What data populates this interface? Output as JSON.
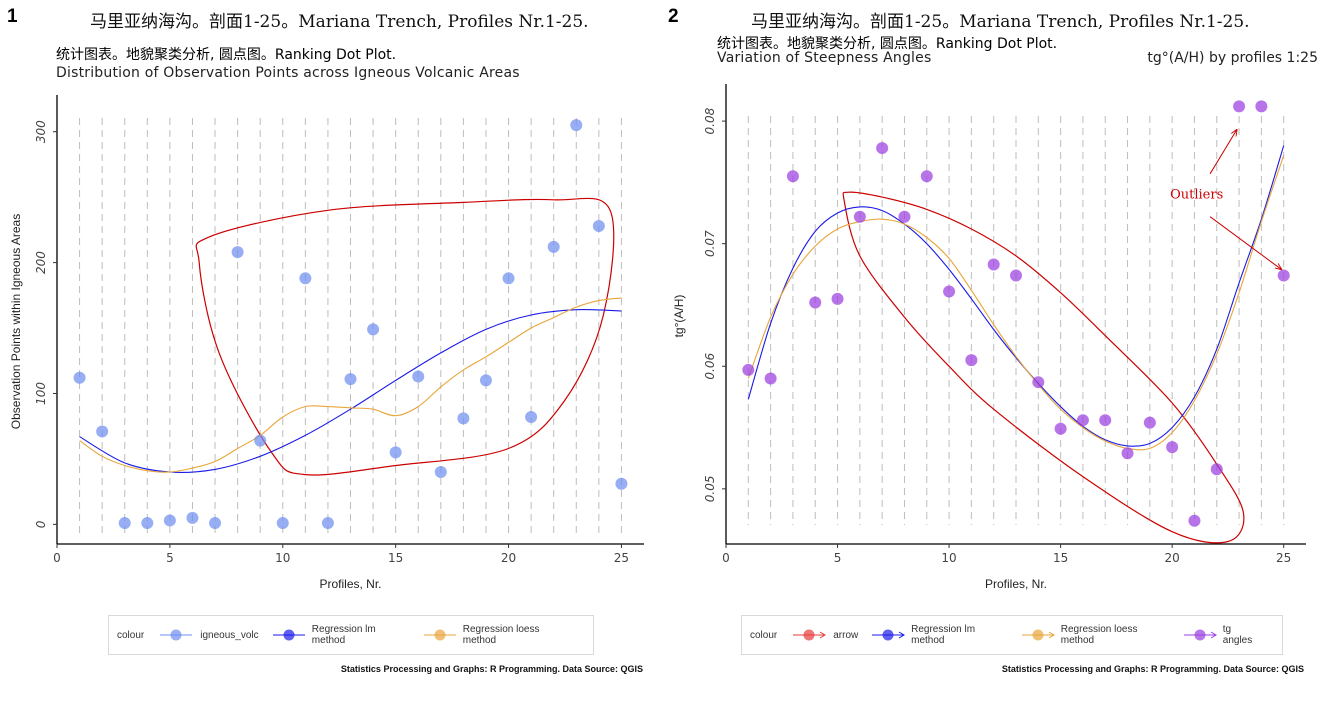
{
  "chart_data": [
    {
      "type": "scatter",
      "panel_label": "1",
      "title": "马里亚纳海沟。剖面1-25。Mariana Trench, Profiles Nr.1-25.",
      "subtitle": "统计图表。地貌聚类分析, 圆点图。Ranking Dot Plot.",
      "subtitle2": "Distribution of Observation Points across Igneous Volcanic Areas",
      "xlabel": "Profiles, Nr.",
      "ylabel": "Observation Points within Igneous Areas",
      "xlim": [
        0,
        26
      ],
      "ylim": [
        -15,
        325
      ],
      "xticks": [
        "0",
        "5",
        "10",
        "15",
        "20",
        "25"
      ],
      "xtick_values": [
        0,
        5,
        10,
        15,
        20,
        25
      ],
      "yticks": [
        "0",
        "100",
        "200",
        "300"
      ],
      "ytick_values": [
        0,
        100,
        200,
        300
      ],
      "grid": "dashed vertical lines at each profile",
      "series": [
        {
          "name": "igneous_volc",
          "kind": "points",
          "color": "#6f8ff0",
          "x": [
            1,
            2,
            3,
            4,
            5,
            6,
            7,
            8,
            9,
            10,
            11,
            12,
            13,
            14,
            15,
            16,
            17,
            18,
            19,
            20,
            21,
            22,
            23,
            24,
            25
          ],
          "y": [
            112,
            71,
            1,
            1,
            3,
            5,
            1,
            208,
            64,
            1,
            188,
            1,
            111,
            149,
            55,
            113,
            40,
            81,
            110,
            188,
            82,
            212,
            305,
            228,
            31
          ]
        },
        {
          "name": "Regression lm method",
          "kind": "line",
          "color": "#1a1ae8",
          "x": [
            1,
            3,
            5,
            7,
            9,
            11,
            13,
            15,
            17,
            19,
            21,
            23,
            25
          ],
          "y": [
            67,
            47,
            40,
            42,
            52,
            68,
            88,
            110,
            131,
            149,
            160,
            164,
            163
          ]
        },
        {
          "name": "Regression loess method",
          "kind": "line",
          "color": "#e8a53a",
          "x": [
            1,
            2,
            3,
            4,
            5,
            6,
            7,
            8,
            9,
            10,
            11,
            12,
            13,
            14,
            15,
            16,
            17,
            18,
            19,
            20,
            21,
            22,
            23,
            24,
            25
          ],
          "y": [
            64,
            52,
            45,
            41,
            40,
            43,
            48,
            58,
            68,
            82,
            90,
            90,
            89,
            88,
            83,
            90,
            105,
            118,
            128,
            139,
            150,
            158,
            166,
            171,
            173
          ]
        }
      ],
      "annotation_shape": {
        "kind": "closed-curve",
        "color": "#cc0000",
        "x": [
          6.8,
          12,
          18,
          22,
          24.5,
          24.2,
          22.5,
          20,
          15,
          11,
          9.5,
          7.2,
          6.3
        ],
        "y": [
          220,
          240,
          246,
          248,
          240,
          160,
          95,
          58,
          45,
          38,
          55,
          130,
          200
        ]
      },
      "legend": {
        "title": "colour",
        "entries": [
          {
            "label": "igneous_volc",
            "color": "#6f8ff0"
          },
          {
            "label": "Regression lm method",
            "color": "#1a1ae8"
          },
          {
            "label": "Regression loess method",
            "color": "#e8a53a"
          }
        ]
      },
      "caption": "Statistics Processing and Graphs: R Programming. Data Source: QGIS"
    },
    {
      "type": "scatter",
      "panel_label": "2",
      "title": "马里亚纳海沟。剖面1-25。Mariana Trench, Profiles Nr.1-25.",
      "subtitle": "统计图表。地貌聚类分析, 圆点图。Ranking Dot Plot.",
      "subtitle2": "Variation of Steepness Angles",
      "subtitle_right": "tg°(A/H) by profiles 1:25",
      "xlabel": "Profiles, Nr.",
      "ylabel": "tg°(A/H)",
      "xlim": [
        0,
        26
      ],
      "ylim": [
        0.0455,
        0.0827
      ],
      "xticks": [
        "0",
        "5",
        "10",
        "15",
        "20",
        "25"
      ],
      "xtick_values": [
        0,
        5,
        10,
        15,
        20,
        25
      ],
      "yticks": [
        "0.05",
        "0.06",
        "0.07",
        "0.08"
      ],
      "ytick_values": [
        0.05,
        0.06,
        0.07,
        0.08
      ],
      "grid": "dashed vertical lines at each profile",
      "series": [
        {
          "name": "tg angles",
          "kind": "points",
          "color": "#9b3fe0",
          "x": [
            1,
            2,
            3,
            4,
            5,
            6,
            7,
            8,
            9,
            10,
            11,
            12,
            13,
            14,
            15,
            16,
            17,
            18,
            19,
            20,
            21,
            22,
            23,
            24,
            25
          ],
          "y": [
            0.0597,
            0.059,
            0.0755,
            0.0652,
            0.0655,
            0.0722,
            0.0778,
            0.0722,
            0.0755,
            0.0661,
            0.0605,
            0.0683,
            0.0674,
            0.0587,
            0.0549,
            0.0556,
            0.0556,
            0.0529,
            0.0554,
            0.0534,
            0.0474,
            0.0516,
            0.0812,
            0.0812,
            0.0674
          ]
        },
        {
          "name": "Regression lm method",
          "kind": "line",
          "color": "#1a1ae8",
          "x": [
            1,
            2,
            3,
            4,
            5,
            6,
            7,
            8,
            9,
            10,
            11,
            12,
            13,
            14,
            15,
            16,
            17,
            18,
            19,
            20,
            21,
            22,
            23,
            24,
            25
          ],
          "y": [
            0.0573,
            0.0635,
            0.068,
            0.071,
            0.0725,
            0.073,
            0.0727,
            0.0716,
            0.07,
            0.0679,
            0.0655,
            0.063,
            0.0607,
            0.0586,
            0.0567,
            0.0551,
            0.054,
            0.0535,
            0.0537,
            0.055,
            0.0575,
            0.0614,
            0.0668,
            0.072,
            0.078
          ]
        },
        {
          "name": "Regression loess method",
          "kind": "line",
          "color": "#e8a53a",
          "x": [
            1,
            2,
            3,
            4,
            5,
            6,
            7,
            8,
            9,
            10,
            11,
            12,
            13,
            14,
            15,
            16,
            17,
            18,
            19,
            20,
            21,
            22,
            23,
            24,
            25
          ],
          "y": [
            0.059,
            0.064,
            0.0675,
            0.0698,
            0.0712,
            0.0718,
            0.072,
            0.0716,
            0.0705,
            0.0688,
            0.0662,
            0.0634,
            0.0608,
            0.0585,
            0.0565,
            0.055,
            0.0539,
            0.0533,
            0.0533,
            0.0546,
            0.0572,
            0.061,
            0.066,
            0.0718,
            0.0772
          ]
        }
      ],
      "annotation_shape": {
        "kind": "closed-curve",
        "color": "#cc0000",
        "x": [
          5.5,
          7,
          9,
          11,
          13,
          15,
          17,
          20,
          22,
          23.2,
          22.5,
          20,
          16,
          12,
          10,
          8,
          6,
          5.3
        ],
        "y": [
          0.0742,
          0.0738,
          0.0728,
          0.0712,
          0.069,
          0.066,
          0.0625,
          0.057,
          0.052,
          0.048,
          0.0457,
          0.0465,
          0.051,
          0.0565,
          0.06,
          0.064,
          0.069,
          0.0735
        ]
      },
      "annotation": {
        "text": "Outliers",
        "color": "#cc0000",
        "x": 21.1,
        "y": 0.0737,
        "arrows": [
          {
            "from": [
              21.7,
              0.0757
            ],
            "to": [
              22.9,
              0.0793
            ]
          },
          {
            "from": [
              21.7,
              0.0722
            ],
            "to": [
              24.9,
              0.0679
            ]
          }
        ]
      },
      "legend": {
        "title": "colour",
        "entries": [
          {
            "label": "arrow",
            "color": "#e63a3a"
          },
          {
            "label": "Regression lm method",
            "color": "#1a1ae8"
          },
          {
            "label": "Regression loess method",
            "color": "#e8a53a"
          },
          {
            "label": "tg angles",
            "color": "#9b3fe0"
          }
        ]
      },
      "caption": "Statistics Processing and Graphs: R Programming. Data Source: QGIS"
    }
  ]
}
